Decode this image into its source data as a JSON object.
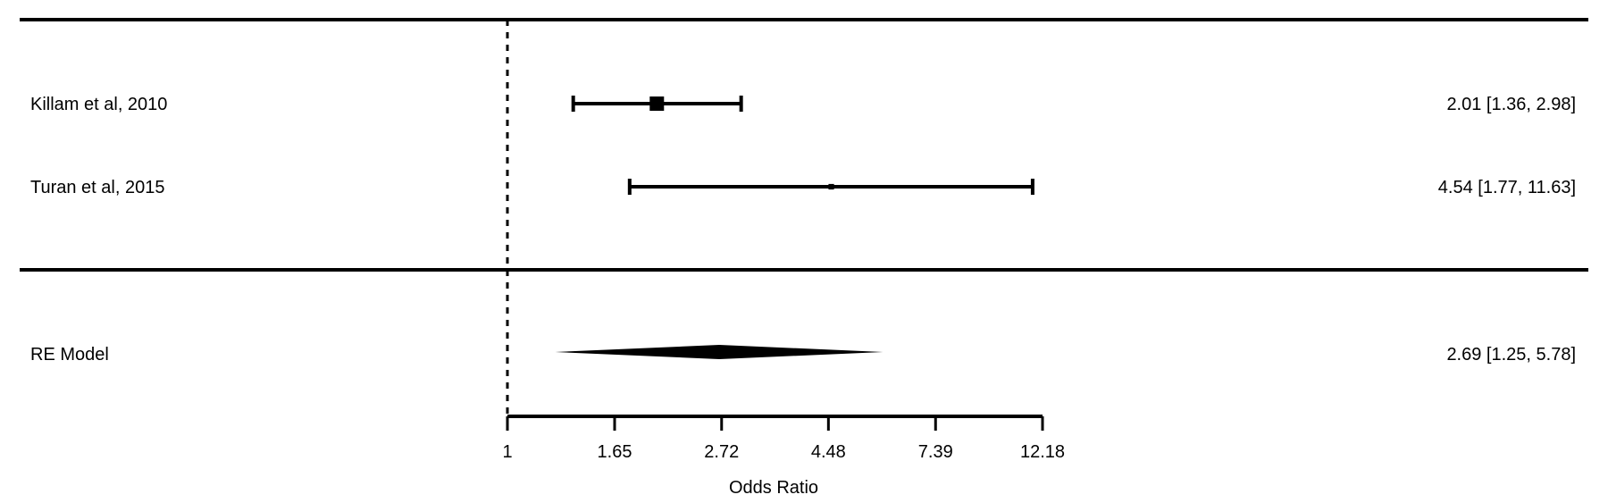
{
  "chart_data": {
    "type": "forest",
    "xlabel": "Odds Ratio",
    "x_scale": "log",
    "xlim": [
      1,
      12.18
    ],
    "reference_line": 1,
    "x_ticks": [
      "1",
      "1.65",
      "2.72",
      "4.48",
      "7.39",
      "12.18"
    ],
    "x_tick_values": [
      1,
      1.65,
      2.72,
      4.48,
      7.39,
      12.18
    ],
    "studies": [
      {
        "label": "Killam et al, 2010",
        "estimate": 2.01,
        "ci_low": 1.36,
        "ci_high": 2.98,
        "text": "2.01 [1.36, 2.98]",
        "weight": 1.0
      },
      {
        "label": "Turan et al, 2015",
        "estimate": 4.54,
        "ci_low": 1.77,
        "ci_high": 11.63,
        "text": "4.54 [1.77, 11.63]",
        "weight": 0.15
      }
    ],
    "summary": {
      "label": "RE Model",
      "estimate": 2.69,
      "ci_low": 1.25,
      "ci_high": 5.78,
      "text": "2.69 [1.25, 5.78]"
    }
  }
}
